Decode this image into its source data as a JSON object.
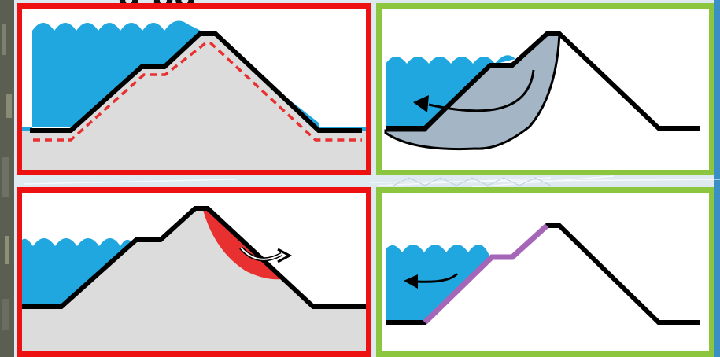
{
  "heading": {
    "visible_text": "g   pg"
  },
  "colors": {
    "water": "#20a7df",
    "soil": "#dcdcdc",
    "slide": "#a4b6c6",
    "erosion": "#e83030",
    "lining": "#a566b8",
    "bad_frame": "#ee1111",
    "good_frame": "#8cc63f",
    "outline": "#000000"
  },
  "panels": [
    {
      "id": "seepage-under-dam",
      "frame": "red",
      "icons": [
        "water-icon",
        "dam-icon",
        "seepage-line-icon"
      ]
    },
    {
      "id": "slope-slide",
      "frame": "green",
      "icons": [
        "water-icon",
        "dam-icon",
        "slide-mass-icon",
        "curved-arrow-icon"
      ]
    },
    {
      "id": "downstream-erosion",
      "frame": "red",
      "icons": [
        "water-icon",
        "dam-icon",
        "erosion-icon",
        "curved-arrow-icon"
      ]
    },
    {
      "id": "lined-face",
      "frame": "green",
      "icons": [
        "water-icon",
        "dam-icon",
        "lining-icon",
        "arrow-icon"
      ]
    }
  ]
}
